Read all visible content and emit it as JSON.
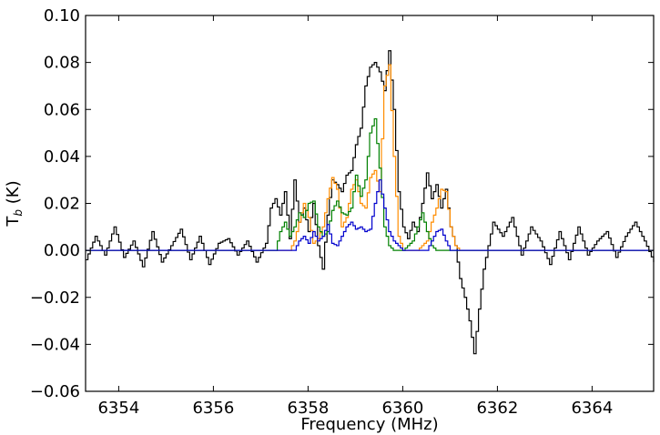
{
  "chart_data": {
    "type": "line",
    "xlabel": "Frequency (MHz)",
    "ylabel_main": "T",
    "ylabel_sub": "b",
    "ylabel_unit": " (K)",
    "xlim": [
      6353.3,
      6365.3
    ],
    "ylim": [
      -0.06,
      0.1
    ],
    "xticks": [
      6354,
      6356,
      6358,
      6360,
      6362,
      6364
    ],
    "xtick_labels": [
      "6354",
      "6356",
      "6358",
      "6360",
      "6362",
      "6364"
    ],
    "yticks": [
      -0.06,
      -0.04,
      -0.02,
      0.0,
      0.02,
      0.04,
      0.06,
      0.08,
      0.1
    ],
    "ytick_labels": [
      "−0.06",
      "−0.04",
      "−0.02",
      "0.00",
      "0.02",
      "0.04",
      "0.06",
      "0.08",
      "0.10"
    ],
    "step": 0.05,
    "grid": false,
    "series": [
      {
        "color": "#000000",
        "style": "steps",
        "x": [
          6353.3,
          6353.5,
          6353.7,
          6353.9,
          6354.1,
          6354.3,
          6354.5,
          6354.7,
          6354.9,
          6355.1,
          6355.3,
          6355.5,
          6355.7,
          6355.9,
          6356.1,
          6356.3,
          6356.5,
          6356.7,
          6356.9,
          6357.1,
          6357.2,
          6357.3,
          6357.4,
          6357.5,
          6357.6,
          6357.7,
          6357.8,
          6357.9,
          6358.0,
          6358.1,
          6358.2,
          6358.3,
          6358.4,
          6358.5,
          6358.6,
          6358.7,
          6358.8,
          6358.9,
          6359.0,
          6359.1,
          6359.2,
          6359.3,
          6359.4,
          6359.5,
          6359.6,
          6359.7,
          6359.8,
          6359.9,
          6360.0,
          6360.1,
          6360.2,
          6360.3,
          6360.4,
          6360.5,
          6360.6,
          6360.7,
          6360.8,
          6360.9,
          6361.0,
          6361.1,
          6361.2,
          6361.3,
          6361.4,
          6361.5,
          6361.6,
          6361.7,
          6361.8,
          6361.9,
          6362.1,
          6362.3,
          6362.5,
          6362.7,
          6362.9,
          6363.1,
          6363.3,
          6363.5,
          6363.7,
          6363.9,
          6364.1,
          6364.3,
          6364.5,
          6364.7,
          6364.9,
          6365.1,
          6365.3
        ],
        "y": [
          -0.004,
          0.006,
          -0.002,
          0.01,
          -0.003,
          0.004,
          -0.007,
          0.008,
          -0.005,
          0.002,
          0.009,
          -0.004,
          0.006,
          -0.006,
          0.003,
          0.005,
          -0.002,
          0.004,
          -0.005,
          0.003,
          0.018,
          0.022,
          0.015,
          0.025,
          0.005,
          0.03,
          0.012,
          0.018,
          0.008,
          0.02,
          0.002,
          -0.008,
          0.015,
          0.03,
          0.028,
          0.025,
          0.032,
          0.034,
          0.045,
          0.052,
          0.07,
          0.078,
          0.08,
          0.076,
          0.068,
          0.085,
          0.06,
          0.025,
          0.01,
          0.005,
          0.012,
          0.008,
          0.02,
          0.033,
          0.022,
          0.028,
          0.018,
          0.026,
          0.01,
          0.002,
          -0.012,
          -0.02,
          -0.03,
          -0.044,
          -0.025,
          -0.008,
          0.002,
          0.012,
          0.006,
          0.014,
          -0.002,
          0.01,
          0.004,
          -0.006,
          0.008,
          -0.004,
          0.01,
          -0.002,
          0.004,
          0.008,
          -0.003,
          0.006,
          0.012,
          0.004,
          -0.005
        ]
      },
      {
        "color": "#ff8c00",
        "style": "steps",
        "x": [
          6353.3,
          6357.6,
          6357.7,
          6357.8,
          6357.9,
          6358.0,
          6358.1,
          6358.2,
          6358.3,
          6358.4,
          6358.5,
          6358.6,
          6358.7,
          6358.8,
          6358.9,
          6359.0,
          6359.1,
          6359.2,
          6359.3,
          6359.4,
          6359.5,
          6359.6,
          6359.7,
          6359.8,
          6359.9,
          6360.0,
          6360.3,
          6360.5,
          6360.6,
          6360.7,
          6360.8,
          6360.9,
          6361.0,
          6361.1,
          6361.2,
          6365.3
        ],
        "y": [
          0.0,
          0.0,
          0.004,
          0.012,
          0.02,
          0.014,
          0.003,
          0.005,
          0.01,
          0.022,
          0.031,
          0.026,
          0.01,
          0.014,
          0.026,
          0.03,
          0.02,
          0.018,
          0.031,
          0.034,
          0.025,
          0.07,
          0.079,
          0.04,
          0.006,
          0.0,
          0.0,
          0.004,
          0.012,
          0.018,
          0.026,
          0.025,
          0.01,
          0.002,
          0.0,
          0.0
        ]
      },
      {
        "color": "#008000",
        "style": "steps",
        "x": [
          6353.3,
          6357.3,
          6357.4,
          6357.5,
          6357.6,
          6357.7,
          6357.8,
          6357.9,
          6358.0,
          6358.1,
          6358.2,
          6358.3,
          6358.4,
          6358.5,
          6358.6,
          6358.7,
          6358.8,
          6358.9,
          6359.0,
          6359.1,
          6359.2,
          6359.3,
          6359.4,
          6359.5,
          6359.6,
          6359.7,
          6359.8,
          6360.0,
          6360.2,
          6360.3,
          6360.4,
          6360.5,
          6360.6,
          6360.7,
          6360.8,
          6365.3
        ],
        "y": [
          0.0,
          0.0,
          0.008,
          0.012,
          0.006,
          0.01,
          0.016,
          0.014,
          0.02,
          0.021,
          0.01,
          0.006,
          0.008,
          0.017,
          0.021,
          0.016,
          0.015,
          0.018,
          0.032,
          0.023,
          0.03,
          0.05,
          0.056,
          0.035,
          0.01,
          0.002,
          0.0,
          0.0,
          0.004,
          0.01,
          0.016,
          0.008,
          0.002,
          0.0,
          0.0,
          0.0
        ]
      },
      {
        "color": "#0000cd",
        "style": "steps",
        "x": [
          6353.3,
          6357.7,
          6357.8,
          6357.9,
          6358.0,
          6358.1,
          6358.2,
          6358.3,
          6358.4,
          6358.5,
          6358.6,
          6358.7,
          6358.8,
          6358.9,
          6359.0,
          6359.1,
          6359.2,
          6359.3,
          6359.4,
          6359.5,
          6359.6,
          6359.7,
          6359.8,
          6359.9,
          6360.0,
          6360.5,
          6360.6,
          6360.7,
          6360.8,
          6360.9,
          6361.0,
          6365.3
        ],
        "y": [
          0.0,
          0.0,
          0.004,
          0.006,
          0.003,
          0.008,
          0.004,
          0.006,
          0.011,
          0.003,
          0.002,
          0.006,
          0.01,
          0.012,
          0.009,
          0.01,
          0.008,
          0.009,
          0.02,
          0.03,
          0.018,
          0.008,
          0.004,
          0.002,
          0.0,
          0.0,
          0.004,
          0.008,
          0.009,
          0.004,
          0.0,
          0.0
        ]
      }
    ]
  }
}
